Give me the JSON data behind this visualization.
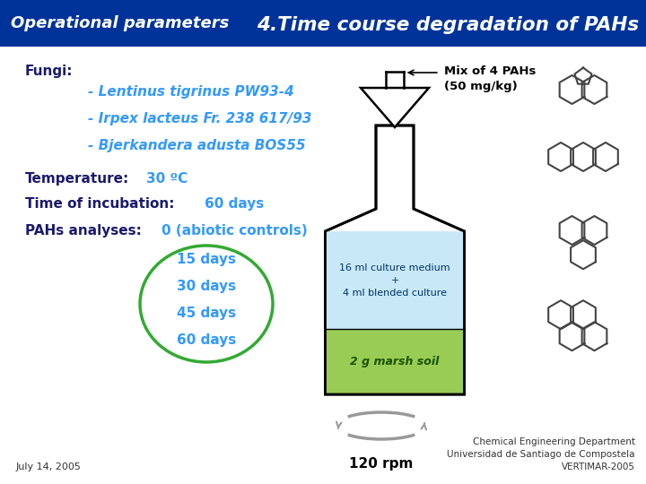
{
  "bg_color": "#ffffff",
  "header_bg": "#003399",
  "header_left_text": "Operational parameters",
  "header_right_text": "4.Time course degradation of PAHs",
  "header_left_color": "#ffffff",
  "header_right_color": "#ffffff",
  "fungi_label": "Fungi:",
  "fungi_items": [
    "- Lentinus tigrinus PW93-4",
    "- Irpex lacteus Fr. 238 617/93",
    "- Bjerkandera adusta BOS55"
  ],
  "temp_label": "Temperature:",
  "temp_value": "30 ºC",
  "incub_label": "Time of incubation:",
  "incub_value": "60 days",
  "pahs_label": "PAHs analyses:",
  "pahs_value": "0 (abiotic controls)",
  "days_items": [
    "15 days",
    "30 days",
    "45 days",
    "60 days"
  ],
  "label_color": "#1a1a6e",
  "value_color": "#3399ff",
  "fungi_color": "#3399ff",
  "ellipse_color": "#33aa33",
  "mix_label": "Mix of 4 PAHs\n(50 mg/kg)",
  "culture_text": "16 ml culture medium\n+\n4 ml blended culture",
  "soil_text": "2 g marsh soil",
  "rpm_text": "120 rpm",
  "footer_left": "July 14, 2005",
  "footer_right": "Chemical Engineering Department\nUniversidad de Santiago de Compostela\nVERTIMAR-2005",
  "footer_color": "#333333",
  "bottle_bg": "#ffffff",
  "culture_bg": "#c8e8f8",
  "soil_bg": "#99cc55"
}
